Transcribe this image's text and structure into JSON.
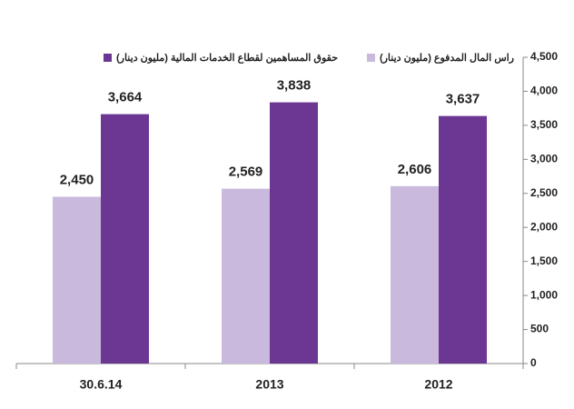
{
  "chart_data": {
    "type": "bar",
    "categories": [
      "30.6.14",
      "2013",
      "2012"
    ],
    "series": [
      {
        "name": "راس المال المدفوع (مليون دينار)",
        "color": "#c9b9dd",
        "values": [
          2450,
          2569,
          2606
        ],
        "value_labels": [
          "2,450",
          "2,569",
          "2,606"
        ]
      },
      {
        "name": "حقوق المساهمين لقطاع الخدمات المالية (مليون دينار)",
        "color": "#6b3792",
        "values": [
          3664,
          3838,
          3637
        ],
        "value_labels": [
          "3,664",
          "3,838",
          "3,637"
        ]
      }
    ],
    "ylim": [
      0,
      4500
    ],
    "yticks": [
      0,
      500,
      {
        "value": 1000,
        "label": "1,000"
      },
      {
        "value": 1500,
        "label": "1,500"
      },
      {
        "value": 2000,
        "label": "2,000"
      },
      {
        "value": 2500,
        "label": "2,500"
      },
      {
        "value": 3000,
        "label": "3,000"
      },
      {
        "value": 3500,
        "label": "3,500"
      },
      {
        "value": 4000,
        "label": "4,000"
      },
      {
        "value": 4500,
        "label": "4,500"
      }
    ],
    "y_axis_side": "right",
    "grid": false,
    "legend_position": "top"
  }
}
